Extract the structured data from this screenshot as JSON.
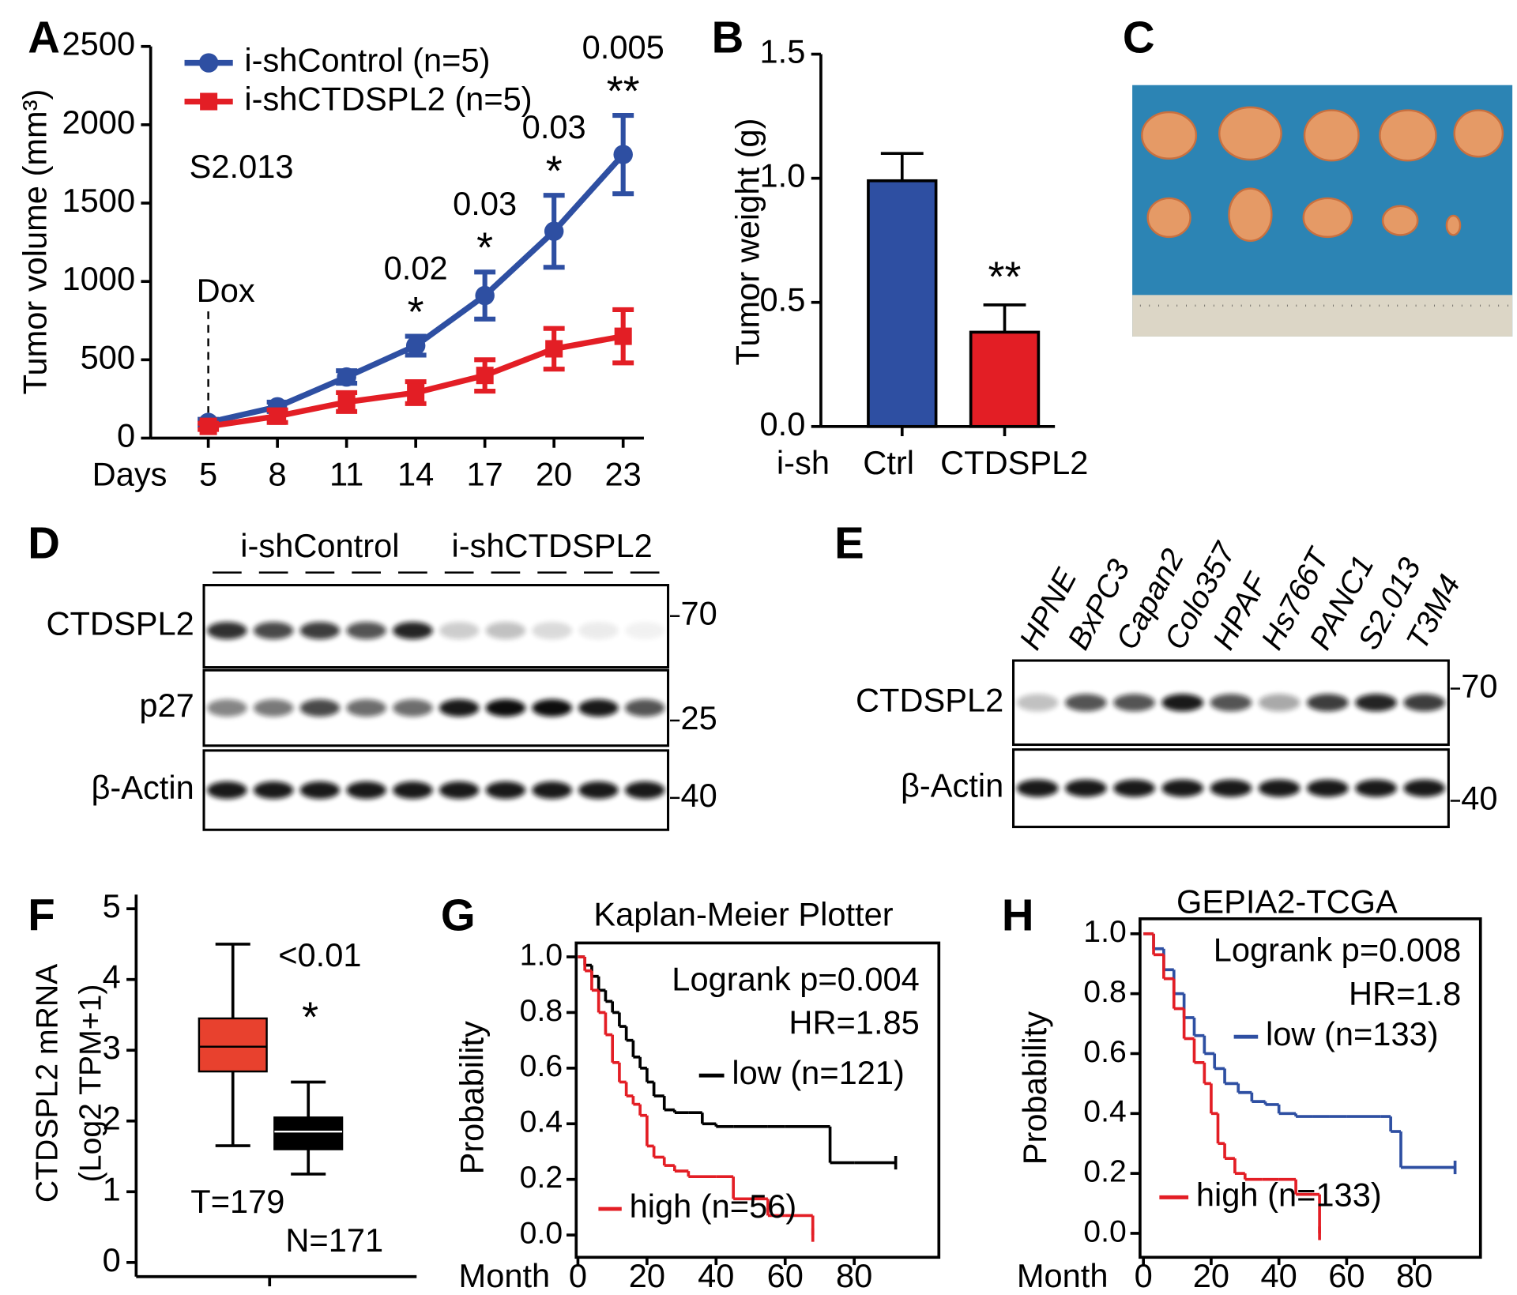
{
  "chart_data": [
    {
      "type": "line",
      "panel": "A",
      "x_label": "Days",
      "y_label": "Tumor volume (mm³)",
      "note": "S2.013",
      "marker_label": "Dox",
      "x": [
        5,
        8,
        11,
        14,
        17,
        20,
        23
      ],
      "xticks": [
        5,
        8,
        11,
        14,
        17,
        20,
        23
      ],
      "xlim": [
        2.5,
        23.9
      ],
      "ylim": [
        0,
        2500
      ],
      "yticks": [
        0,
        500,
        1000,
        1500,
        2000,
        2500
      ],
      "series": [
        {
          "name": "i-shControl (n=5)",
          "color": "#2e4fa2",
          "values": [
            100,
            200,
            390,
            590,
            910,
            1320,
            1810
          ],
          "errors": [
            20,
            30,
            40,
            60,
            150,
            230,
            250
          ]
        },
        {
          "name": "i-shCTDSPL2 (n=5)",
          "color": "#e31e25",
          "values": [
            75,
            140,
            230,
            290,
            400,
            570,
            650
          ],
          "errors": [
            20,
            40,
            60,
            70,
            100,
            130,
            170
          ]
        }
      ],
      "significance": [
        {
          "x": 14,
          "p": "0.02",
          "stars": "*"
        },
        {
          "x": 17,
          "p": "0.03",
          "stars": "*"
        },
        {
          "x": 20,
          "p": "0.03",
          "stars": "*"
        },
        {
          "x": 23,
          "p": "0.005",
          "stars": "**"
        }
      ]
    },
    {
      "type": "bar",
      "panel": "B",
      "x_label": "i-sh",
      "y_label": "Tumor weight (g)",
      "categories": [
        "Ctrl",
        "CTDSPL2"
      ],
      "values": [
        0.99,
        0.38
      ],
      "errors": [
        0.11,
        0.11
      ],
      "colors": [
        "#2e4fa2",
        "#e31e25"
      ],
      "ylim": [
        0,
        1.5
      ],
      "yticks": [
        {
          "value": 0,
          "label": "0.0"
        },
        0.5,
        {
          "value": 1,
          "label": "1.0"
        },
        1.5
      ],
      "stars": "**"
    },
    {
      "type": "image",
      "panel": "C"
    },
    {
      "type": "blot",
      "panel": "D",
      "groups": [
        "i-shControl",
        "i-shCTDSPL2"
      ],
      "rows": [
        "CTDSPL2",
        "p27",
        "β-Actin"
      ],
      "markers": [
        "70",
        "25",
        "40"
      ]
    },
    {
      "type": "blot",
      "panel": "E",
      "lanes": [
        "HPNE",
        "BxPC3",
        "Capan2",
        "Colo357",
        "HPAF",
        "Hs766T",
        "PANC1",
        "S2.013",
        "T3M4"
      ],
      "rows": [
        "CTDSPL2",
        "β-Actin"
      ],
      "markers": [
        "70",
        "40"
      ]
    },
    {
      "type": "box",
      "panel": "F",
      "y_label": [
        "CTDSPL2 mRNA",
        "(Log2 TPM+1)"
      ],
      "ylim": [
        -0.2,
        5.2
      ],
      "yticks": [
        0,
        1,
        2,
        3,
        4,
        5
      ],
      "boxes": [
        {
          "name": "T=179",
          "color": "#e8412e",
          "whisker_low": 1.65,
          "q1": 2.7,
          "median": 3.05,
          "q3": 3.45,
          "whisker_high": 4.5
        },
        {
          "name": "N=171",
          "color": "#000000",
          "whisker_low": 1.25,
          "q1": 1.6,
          "median": 1.85,
          "q3": 2.05,
          "whisker_high": 2.55
        }
      ],
      "p_value": "<0.01",
      "stars": "*"
    },
    {
      "type": "survival",
      "panel": "G",
      "title": "Kaplan-Meier Plotter",
      "x_label": "Month",
      "y_label": "Probability",
      "annotations": [
        "Logrank p=0.004",
        "HR=1.85"
      ],
      "xlim": [
        -0.5,
        104.5
      ],
      "xticks": [
        0,
        20,
        40,
        60,
        80
      ],
      "ylim": [
        -0.08,
        1.05
      ],
      "yticks": [
        {
          "value": 0,
          "label": "0.0"
        },
        0.2,
        0.4,
        0.6,
        0.8,
        {
          "value": 1,
          "label": "1.0"
        }
      ],
      "series": [
        {
          "name": "low (n=121)",
          "color": "#000000",
          "x": [
            0,
            2,
            4,
            6,
            8,
            10,
            12,
            14,
            16,
            18,
            20,
            22,
            25,
            28,
            32,
            36,
            40,
            45,
            55,
            60,
            73,
            80,
            92
          ],
          "values": [
            1,
            0.97,
            0.93,
            0.88,
            0.84,
            0.8,
            0.75,
            0.7,
            0.64,
            0.6,
            0.55,
            0.5,
            0.45,
            0.44,
            0.44,
            0.4,
            0.39,
            0.39,
            0.39,
            0.39,
            0.26,
            0.26,
            0.26
          ]
        },
        {
          "name": "high (n=56)",
          "color": "#e31e25",
          "x": [
            0,
            2,
            4,
            6,
            8,
            10,
            12,
            14,
            16,
            18,
            20,
            22,
            25,
            28,
            32,
            40,
            45,
            55,
            60,
            68
          ],
          "values": [
            1,
            0.95,
            0.88,
            0.8,
            0.72,
            0.62,
            0.55,
            0.5,
            0.47,
            0.43,
            0.32,
            0.28,
            0.25,
            0.23,
            0.21,
            0.21,
            0.13,
            0.07,
            0.07,
            0
          ]
        }
      ]
    },
    {
      "type": "survival",
      "panel": "H",
      "title": "GEPIA2-TCGA",
      "x_label": "Month",
      "y_label": "Probability",
      "annotations": [
        "Logrank p=0.008",
        "HR=1.8"
      ],
      "xlim": [
        -1,
        99.5
      ],
      "xticks": [
        0,
        20,
        40,
        60,
        80
      ],
      "ylim": [
        -0.08,
        1.05
      ],
      "yticks": [
        {
          "value": 0,
          "label": "0.0"
        },
        0.2,
        0.4,
        0.6,
        0.8,
        {
          "value": 1,
          "label": "1.0"
        }
      ],
      "series": [
        {
          "name": "low (n=133)",
          "color": "#2e4fa2",
          "x": [
            0,
            3,
            6,
            9,
            12,
            15,
            18,
            21,
            24,
            28,
            32,
            36,
            40,
            45,
            50,
            55,
            60,
            70,
            73,
            76,
            92
          ],
          "values": [
            1,
            0.95,
            0.88,
            0.8,
            0.72,
            0.66,
            0.6,
            0.55,
            0.5,
            0.47,
            0.44,
            0.43,
            0.4,
            0.39,
            0.39,
            0.39,
            0.39,
            0.39,
            0.34,
            0.22,
            0.22
          ]
        },
        {
          "name": "high (n=133)",
          "color": "#e31e25",
          "x": [
            0,
            3,
            6,
            9,
            12,
            15,
            18,
            20,
            22,
            24,
            27,
            30,
            35,
            40,
            45,
            50,
            52
          ],
          "values": [
            1,
            0.93,
            0.85,
            0.75,
            0.65,
            0.57,
            0.5,
            0.4,
            0.3,
            0.25,
            0.2,
            0.18,
            0.18,
            0.18,
            0.13,
            0.13,
            0
          ]
        }
      ]
    }
  ]
}
